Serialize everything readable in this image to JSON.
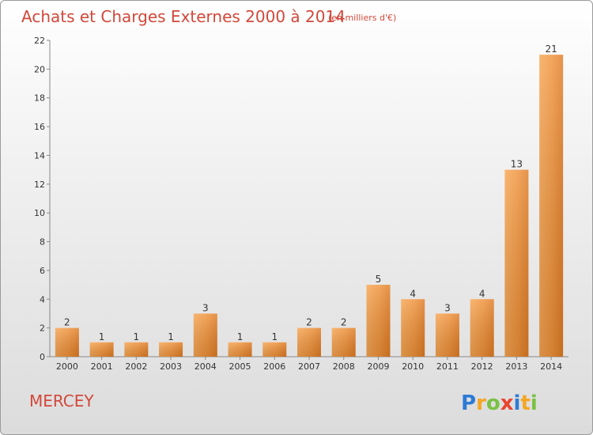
{
  "chart_data": {
    "type": "bar",
    "title": "Achats et Charges Externes 2000 à 2014",
    "subtitle": "(en milliers d'€)",
    "categories": [
      "2000",
      "2001",
      "2002",
      "2003",
      "2004",
      "2005",
      "2006",
      "2007",
      "2008",
      "2009",
      "2010",
      "2011",
      "2012",
      "2013",
      "2014"
    ],
    "values": [
      2,
      1,
      1,
      1,
      3,
      1,
      1,
      2,
      2,
      5,
      4,
      3,
      4,
      13,
      21
    ],
    "ylim": [
      0,
      22
    ],
    "yticks": [
      0,
      2,
      4,
      6,
      8,
      10,
      12,
      14,
      16,
      18,
      20,
      22
    ],
    "grid": false,
    "legend": "none",
    "bar_color": "#f0963c"
  },
  "place_name": "MERCEY",
  "logo": {
    "letters": [
      "P",
      "r",
      "o",
      "x",
      "i",
      "t",
      "i"
    ],
    "colors": [
      "#2e7bd6",
      "#f5a623",
      "#7ac143",
      "#e8442e",
      "#2e7bd6",
      "#f5a623",
      "#7ac143"
    ]
  }
}
